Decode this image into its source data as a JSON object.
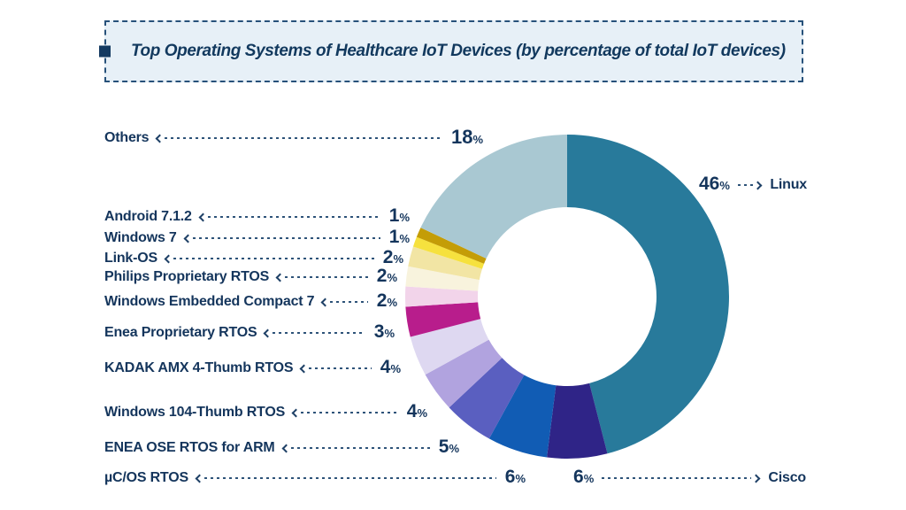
{
  "percent_symbol": "%",
  "title": {
    "text": "Top Operating Systems of Healthcare IoT Devices (by percentage of total IoT devices)"
  },
  "colors": {
    "text_navy": "#14355c",
    "title_navy": "#12395e",
    "banner_bg": "#e7f0f7",
    "banner_border": "#27517a",
    "arrow": "#2e5379"
  },
  "chart_data": {
    "type": "pie",
    "subtype": "donut",
    "title": "Top Operating Systems of Healthcare IoT Devices (by percentage of total IoT devices)",
    "unit": "%",
    "start_angle_deg": 0,
    "direction": "clockwise",
    "inner_radius_ratio": 0.55,
    "segments": [
      {
        "label": "Linux",
        "value": 46,
        "color": "#287a9b"
      },
      {
        "label": "Cisco",
        "value": 6,
        "color": "#2f2487"
      },
      {
        "label": "µC/OS RTOS",
        "value": 6,
        "color": "#115cb4"
      },
      {
        "label": "ENEA OSE RTOS for ARM",
        "value": 5,
        "color": "#5a5fc0"
      },
      {
        "label": "Windows 104-Thumb RTOS",
        "value": 4,
        "color": "#b1a3df"
      },
      {
        "label": "KADAK AMX 4-Thumb RTOS",
        "value": 4,
        "color": "#ded8f1"
      },
      {
        "label": "Enea Proprietary RTOS",
        "value": 3,
        "color": "#b81d8c"
      },
      {
        "label": "Windows Embedded Compact 7",
        "value": 2,
        "color": "#f2d4ea"
      },
      {
        "label": "Philips Proprietary RTOS",
        "value": 2,
        "color": "#f8f3dd"
      },
      {
        "label": "Link-OS",
        "value": 2,
        "color": "#f2e5a4"
      },
      {
        "label": "Windows 7",
        "value": 1,
        "color": "#f6e13e"
      },
      {
        "label": "Android 7.1.2",
        "value": 1,
        "color": "#c49d07"
      },
      {
        "label": "Others",
        "value": 18,
        "color": "#a9c8d2"
      }
    ]
  },
  "callouts": {
    "left": [
      {
        "label": "Others",
        "value": 18
      },
      {
        "label": "Android 7.1.2",
        "value": 1
      },
      {
        "label": "Windows 7",
        "value": 1
      },
      {
        "label": "Link-OS",
        "value": 2
      },
      {
        "label": "Philips Proprietary RTOS",
        "value": 2
      },
      {
        "label": "Windows Embedded Compact 7",
        "value": 2
      },
      {
        "label": "Enea Proprietary RTOS",
        "value": 3
      },
      {
        "label": "KADAK AMX 4-Thumb RTOS",
        "value": 4
      },
      {
        "label": "Windows 104-Thumb RTOS",
        "value": 4
      },
      {
        "label": "ENEA OSE RTOS for ARM",
        "value": 5
      },
      {
        "label": "µC/OS RTOS",
        "value": 6
      }
    ],
    "right": [
      {
        "label": "Linux",
        "value": 46
      },
      {
        "label": "Cisco",
        "value": 6
      }
    ]
  }
}
